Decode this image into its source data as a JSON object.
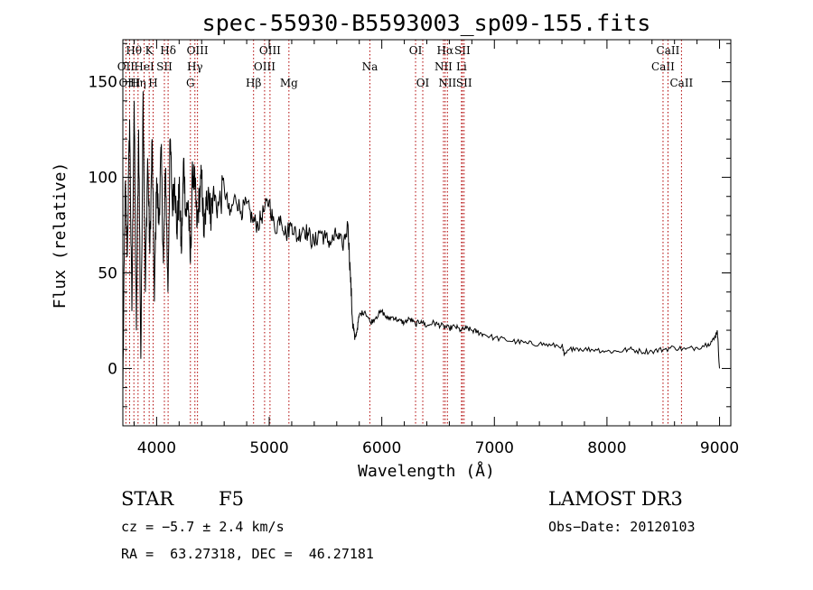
{
  "chart_data": {
    "type": "line",
    "title": "spec-55930-B5593003_sp09-155.fits",
    "xlabel": "Wavelength (Å)",
    "ylabel": "Flux (relative)",
    "xlim": [
      3700,
      9100
    ],
    "ylim": [
      -30,
      172
    ],
    "x_ticks": [
      4000,
      5000,
      6000,
      7000,
      8000,
      9000
    ],
    "y_ticks": [
      0,
      50,
      100,
      150
    ],
    "grid": false,
    "series": [
      {
        "name": "spectrum",
        "color": "#000000",
        "x": [
          3700,
          3720,
          3740,
          3760,
          3780,
          3800,
          3820,
          3840,
          3860,
          3880,
          3900,
          3920,
          3940,
          3960,
          3980,
          4000,
          4020,
          4040,
          4060,
          4080,
          4100,
          4120,
          4140,
          4160,
          4180,
          4200,
          4220,
          4240,
          4260,
          4280,
          4300,
          4320,
          4340,
          4360,
          4380,
          4400,
          4420,
          4440,
          4460,
          4480,
          4500,
          4550,
          4600,
          4650,
          4700,
          4750,
          4800,
          4850,
          4900,
          4950,
          5000,
          5050,
          5100,
          5150,
          5200,
          5250,
          5300,
          5350,
          5400,
          5450,
          5500,
          5550,
          5600,
          5650,
          5700,
          5720,
          5740,
          5760,
          5780,
          5800,
          5850,
          5900,
          5950,
          6000,
          6050,
          6100,
          6150,
          6200,
          6250,
          6300,
          6350,
          6400,
          6450,
          6500,
          6550,
          6600,
          6650,
          6700,
          6750,
          6800,
          6850,
          6900,
          7000,
          7100,
          7200,
          7300,
          7400,
          7500,
          7600,
          7620,
          7700,
          7800,
          7900,
          8000,
          8100,
          8200,
          8300,
          8400,
          8500,
          8600,
          8700,
          8800,
          8900,
          8950,
          8980,
          9000
        ],
        "values": [
          -12,
          95,
          60,
          130,
          30,
          140,
          20,
          125,
          5,
          145,
          40,
          110,
          60,
          120,
          35,
          100,
          75,
          115,
          55,
          105,
          40,
          120,
          85,
          100,
          70,
          95,
          60,
          110,
          80,
          88,
          55,
          105,
          95,
          75,
          90,
          100,
          70,
          85,
          95,
          80,
          90,
          85,
          95,
          80,
          90,
          82,
          86,
          78,
          75,
          82,
          88,
          72,
          80,
          70,
          76,
          68,
          74,
          70,
          65,
          72,
          68,
          66,
          70,
          64,
          75,
          50,
          25,
          15,
          20,
          28,
          30,
          24,
          27,
          30,
          26,
          27,
          25,
          24,
          26,
          23,
          25,
          22,
          24,
          23,
          22,
          21,
          22,
          20,
          21,
          20,
          19,
          18,
          16,
          15,
          14,
          13,
          13,
          12,
          12,
          7,
          11,
          10,
          10,
          9,
          9,
          10,
          9,
          9,
          10,
          11,
          10,
          11,
          13,
          15,
          20,
          0
        ]
      }
    ],
    "line_markers": [
      {
        "label": "Hθ",
        "wavelength": 3798,
        "row": 0,
        "line_color": "#b00000"
      },
      {
        "label": "OII",
        "wavelength": 3727,
        "row": 1,
        "line_color": "#b00000"
      },
      {
        "label": "OIII",
        "wavelength": 3760,
        "row": 2,
        "line_color": "#b00000"
      },
      {
        "label": "Hη",
        "wavelength": 3835,
        "row": 2,
        "line_color": "#b00000"
      },
      {
        "label": "HeI",
        "wavelength": 3889,
        "row": 1,
        "line_color": "#b00000"
      },
      {
        "label": "K",
        "wavelength": 3934,
        "row": 0,
        "line_color": "#b00000"
      },
      {
        "label": "H",
        "wavelength": 3969,
        "row": 2,
        "line_color": "#b00000"
      },
      {
        "label": "SII",
        "wavelength": 4069,
        "row": 1,
        "line_color": "#b00000"
      },
      {
        "label": "Hδ",
        "wavelength": 4102,
        "row": 0,
        "line_color": "#b00000"
      },
      {
        "label": "G",
        "wavelength": 4300,
        "row": 2,
        "line_color": "#b00000"
      },
      {
        "label": "Hγ",
        "wavelength": 4340,
        "row": 1,
        "line_color": "#b00000"
      },
      {
        "label": "OIII",
        "wavelength": 4363,
        "row": 0,
        "line_color": "#b00000"
      },
      {
        "label": "Hβ",
        "wavelength": 4861,
        "row": 2,
        "line_color": "#b00000"
      },
      {
        "label": "OIII",
        "wavelength": 4959,
        "row": 1,
        "line_color": "#b00000"
      },
      {
        "label": "OIII",
        "wavelength": 5007,
        "row": 0,
        "line_color": "#b00000"
      },
      {
        "label": "Mg",
        "wavelength": 5175,
        "row": 2,
        "line_color": "#b00000"
      },
      {
        "label": "Na",
        "wavelength": 5894,
        "row": 1,
        "line_color": "#b00000"
      },
      {
        "label": "OI",
        "wavelength": 6300,
        "row": 0,
        "line_color": "#b00000"
      },
      {
        "label": "OI",
        "wavelength": 6364,
        "row": 2,
        "line_color": "#b00000"
      },
      {
        "label": "NII",
        "wavelength": 6548,
        "row": 1,
        "line_color": "#b00000"
      },
      {
        "label": "Hα",
        "wavelength": 6563,
        "row": 0,
        "line_color": "#b00000"
      },
      {
        "label": "NII",
        "wavelength": 6583,
        "row": 2,
        "line_color": "#b00000"
      },
      {
        "label": "Li",
        "wavelength": 6708,
        "row": 1,
        "line_color": "#b00000"
      },
      {
        "label": "SII",
        "wavelength": 6716,
        "row": 0,
        "line_color": "#b00000"
      },
      {
        "label": "SII",
        "wavelength": 6731,
        "row": 2,
        "line_color": "#b00000"
      },
      {
        "label": "CaII",
        "wavelength": 8498,
        "row": 1,
        "line_color": "#b00000"
      },
      {
        "label": "CaII",
        "wavelength": 8542,
        "row": 0,
        "line_color": "#b00000"
      },
      {
        "label": "CaII",
        "wavelength": 8662,
        "row": 2,
        "line_color": "#b00000"
      }
    ]
  },
  "info": {
    "class_label": "STAR",
    "subclass": "F5",
    "survey": "LAMOST DR3",
    "cz": "cz = −5.7 ± 2.4 km/s",
    "obs_date": "Obs−Date: 20120103",
    "coords": "RA =  63.27318, DEC =  46.27181"
  }
}
